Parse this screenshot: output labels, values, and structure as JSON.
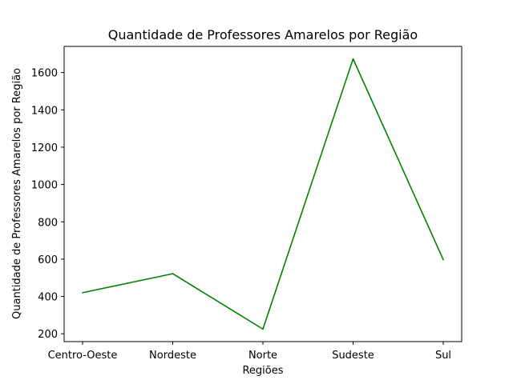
{
  "chart_data": {
    "type": "line",
    "title": "Quantidade de Professores Amarelos por Região",
    "xlabel": "Regiões",
    "ylabel": "Quantidade de Professores Amarelos por Região",
    "categories": [
      "Centro-Oeste",
      "Nordeste",
      "Norte",
      "Sudeste",
      "Sul"
    ],
    "series": [
      {
        "values": [
          420,
          522,
          225,
          1673,
          597
        ],
        "color": "#008000"
      }
    ],
    "ylim": [
      158,
      1740
    ],
    "yticks": [
      200,
      400,
      600,
      800,
      1000,
      1200,
      1400,
      1600
    ],
    "grid": false
  }
}
